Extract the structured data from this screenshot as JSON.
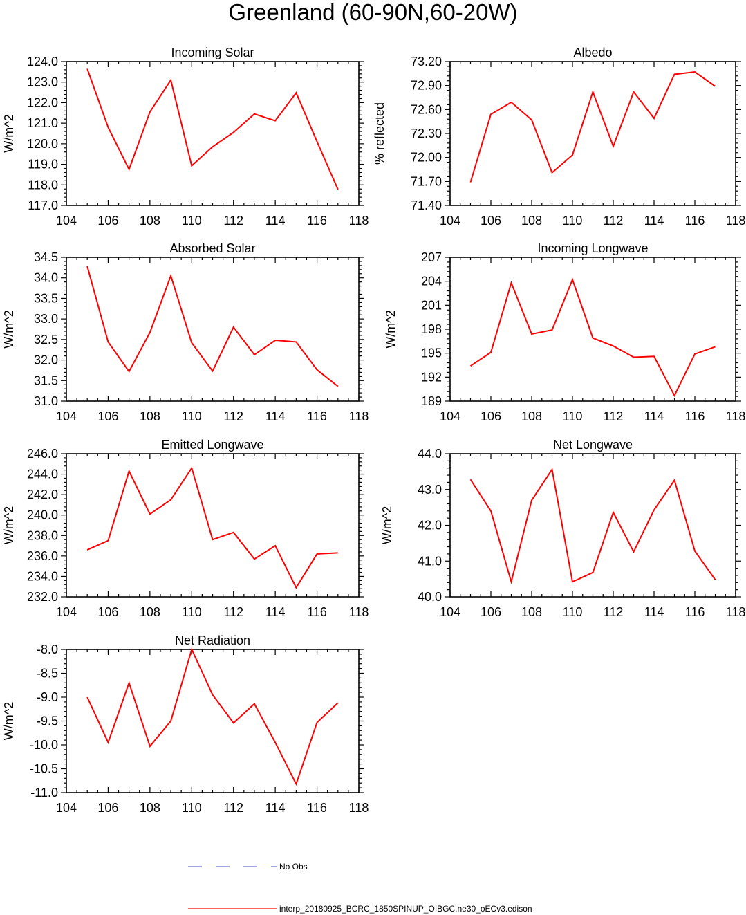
{
  "figure_title": "Greenland (60-90N,60-20W)",
  "legend": {
    "obs_label": "No Obs",
    "obs_color": "#6a6adb",
    "model_label": "interp_20180925_BCRC_1850SPINUP_OIBGC.ne30_oECv3.edison",
    "model_color": "#ff0000"
  },
  "chart_data": [
    {
      "type": "line",
      "title": "Incoming Solar",
      "ylabel": "W/m^2",
      "xlabel": "",
      "xlim": [
        104,
        118
      ],
      "xticks": [
        "104",
        "106",
        "108",
        "110",
        "112",
        "114",
        "116",
        "118"
      ],
      "ylim": [
        117.0,
        124.0
      ],
      "yticks": [
        "124.0",
        "123.0",
        "122.0",
        "121.0",
        "120.0",
        "119.0",
        "118.0",
        "117.0"
      ],
      "x": [
        105,
        106,
        107,
        108,
        109,
        110,
        111,
        112,
        113,
        114,
        115,
        116,
        117
      ],
      "values": [
        123.65,
        120.8,
        118.75,
        121.55,
        123.1,
        118.93,
        119.85,
        120.55,
        121.45,
        121.12,
        122.48,
        120.1,
        117.78
      ]
    },
    {
      "type": "line",
      "title": "Albedo",
      "ylabel": "% reflected",
      "xlabel": "",
      "xlim": [
        104,
        118
      ],
      "xticks": [
        "104",
        "106",
        "108",
        "110",
        "112",
        "114",
        "116",
        "118"
      ],
      "ylim": [
        71.4,
        73.2
      ],
      "yticks": [
        "73.20",
        "72.90",
        "72.60",
        "72.30",
        "72.00",
        "71.70",
        "71.40"
      ],
      "x": [
        105,
        106,
        107,
        108,
        109,
        110,
        111,
        112,
        113,
        114,
        115,
        116,
        117
      ],
      "values": [
        71.69,
        72.54,
        72.69,
        72.47,
        71.81,
        72.03,
        72.82,
        72.14,
        72.82,
        72.49,
        73.04,
        73.07,
        72.89
      ]
    },
    {
      "type": "line",
      "title": "Absorbed Solar",
      "ylabel": "W/m^2",
      "xlabel": "",
      "xlim": [
        104,
        118
      ],
      "xticks": [
        "104",
        "106",
        "108",
        "110",
        "112",
        "114",
        "116",
        "118"
      ],
      "ylim": [
        31.0,
        34.5
      ],
      "yticks": [
        "34.5",
        "34.0",
        "33.5",
        "33.0",
        "32.5",
        "32.0",
        "31.5",
        "31.0"
      ],
      "x": [
        105,
        106,
        107,
        108,
        109,
        110,
        111,
        112,
        113,
        114,
        115,
        116,
        117
      ],
      "values": [
        34.28,
        32.44,
        31.72,
        32.67,
        34.05,
        32.42,
        31.73,
        32.8,
        32.13,
        32.48,
        32.44,
        31.76,
        31.36
      ]
    },
    {
      "type": "line",
      "title": "Incoming Longwave",
      "ylabel": "W/m^2",
      "xlabel": "",
      "xlim": [
        104,
        118
      ],
      "xticks": [
        "104",
        "106",
        "108",
        "110",
        "112",
        "114",
        "116",
        "118"
      ],
      "ylim": [
        189,
        207
      ],
      "yticks": [
        "207",
        "204",
        "201",
        "198",
        "195",
        "192",
        "189"
      ],
      "x": [
        105,
        106,
        107,
        108,
        109,
        110,
        111,
        112,
        113,
        114,
        115,
        116,
        117
      ],
      "values": [
        193.4,
        195.1,
        203.8,
        197.4,
        197.9,
        204.2,
        196.9,
        195.9,
        194.5,
        194.6,
        189.7,
        194.9,
        195.8
      ]
    },
    {
      "type": "line",
      "title": "Emitted Longwave",
      "ylabel": "W/m^2",
      "xlabel": "",
      "xlim": [
        104,
        118
      ],
      "xticks": [
        "104",
        "106",
        "108",
        "110",
        "112",
        "114",
        "116",
        "118"
      ],
      "ylim": [
        232.0,
        246.0
      ],
      "yticks": [
        "246.0",
        "244.0",
        "242.0",
        "240.0",
        "238.0",
        "236.0",
        "234.0",
        "232.0"
      ],
      "x": [
        105,
        106,
        107,
        108,
        109,
        110,
        111,
        112,
        113,
        114,
        115,
        116,
        117
      ],
      "values": [
        236.6,
        237.5,
        244.3,
        240.1,
        241.5,
        244.6,
        237.6,
        238.3,
        235.7,
        237.0,
        232.9,
        236.2,
        236.3
      ]
    },
    {
      "type": "line",
      "title": "Net Longwave",
      "ylabel": "W/m^2",
      "xlabel": "",
      "xlim": [
        104,
        118
      ],
      "xticks": [
        "104",
        "106",
        "108",
        "110",
        "112",
        "114",
        "116",
        "118"
      ],
      "ylim": [
        40.0,
        44.0
      ],
      "yticks": [
        "44.0",
        "43.0",
        "42.0",
        "41.0",
        "40.0"
      ],
      "x": [
        105,
        106,
        107,
        108,
        109,
        110,
        111,
        112,
        113,
        114,
        115,
        116,
        117
      ],
      "values": [
        43.28,
        42.4,
        40.42,
        42.7,
        43.56,
        40.42,
        40.68,
        42.36,
        41.26,
        42.43,
        43.26,
        41.28,
        40.48
      ]
    },
    {
      "type": "line",
      "title": "Net Radiation",
      "ylabel": "W/m^2",
      "xlabel": "",
      "xlim": [
        104,
        118
      ],
      "xticks": [
        "104",
        "106",
        "108",
        "110",
        "112",
        "114",
        "116",
        "118"
      ],
      "ylim": [
        -11.0,
        -8.0
      ],
      "yticks": [
        "-8.0",
        "-8.5",
        "-9.0",
        "-9.5",
        "-10.0",
        "-10.5",
        "-11.0"
      ],
      "x": [
        105,
        106,
        107,
        108,
        109,
        110,
        111,
        112,
        113,
        114,
        115,
        116,
        117
      ],
      "values": [
        -9.0,
        -9.95,
        -8.7,
        -10.03,
        -9.5,
        -8.0,
        -8.95,
        -9.54,
        -9.14,
        -9.95,
        -10.82,
        -9.53,
        -9.12
      ]
    }
  ]
}
